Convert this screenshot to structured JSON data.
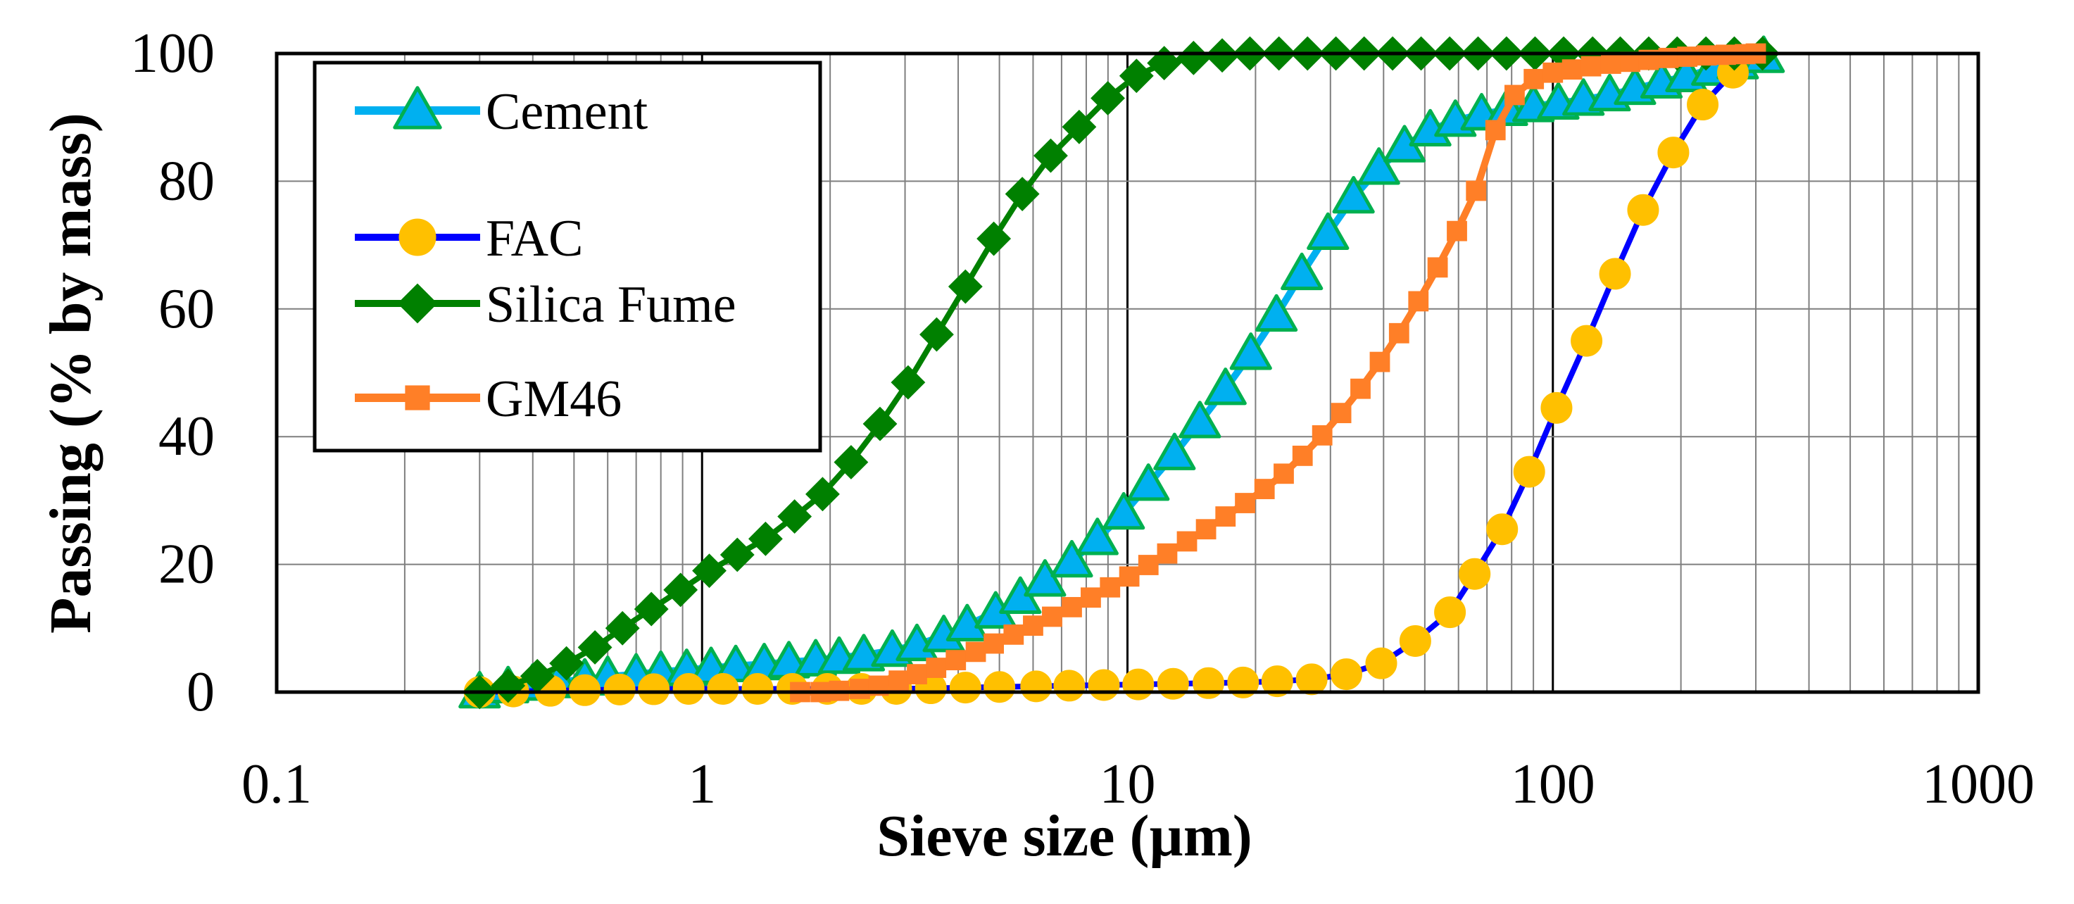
{
  "chart_data": {
    "type": "line",
    "title": "",
    "xlabel": "Sieve size (µm)",
    "ylabel": "Passing (% by mass)",
    "xscale": "log",
    "xlim": [
      0.1,
      1000
    ],
    "ylim": [
      0,
      100
    ],
    "x_ticks": [
      0.1,
      1,
      10,
      100,
      1000
    ],
    "x_tick_labels": [
      "0.1",
      "1",
      "10",
      "100",
      "1000"
    ],
    "y_ticks": [
      0,
      20,
      40,
      60,
      80,
      100
    ],
    "y_tick_labels": [
      "0",
      "20",
      "40",
      "60",
      "80",
      "100"
    ],
    "grid": true,
    "legend_position": "top-left",
    "series": [
      {
        "name": "Cement",
        "marker": "triangle",
        "line_color": "#00B0F0",
        "marker_fill": "#00B0F0",
        "marker_stroke": "#00B050",
        "x": [
          0.3,
          0.35,
          0.4,
          0.46,
          0.53,
          0.6,
          0.7,
          0.8,
          0.92,
          1.05,
          1.2,
          1.4,
          1.6,
          1.85,
          2.1,
          2.4,
          2.8,
          3.2,
          3.7,
          4.2,
          4.9,
          5.6,
          6.4,
          7.4,
          8.5,
          9.8,
          11.2,
          12.9,
          14.8,
          17,
          19.5,
          22.4,
          25.7,
          29.6,
          34,
          39,
          44.8,
          51.5,
          59,
          68,
          78,
          90,
          103,
          118,
          136,
          156,
          180,
          206,
          237,
          272,
          313
        ],
        "y": [
          0,
          0.8,
          1.2,
          1.6,
          2,
          2.4,
          2.8,
          3.2,
          3.5,
          3.8,
          4.1,
          4.4,
          4.7,
          5,
          5.4,
          5.8,
          6.5,
          7.4,
          8.8,
          10.5,
          12.5,
          14.8,
          17.5,
          20.5,
          24,
          28,
          32.5,
          37.3,
          42.3,
          47.5,
          53,
          59,
          65.5,
          71.8,
          77.5,
          82,
          85.5,
          88,
          89.5,
          90.5,
          91.2,
          91.8,
          92.2,
          92.8,
          93.5,
          94.5,
          95.5,
          96.5,
          97.5,
          98.5,
          99.5
        ]
      },
      {
        "name": "FAC",
        "marker": "circle",
        "line_color": "#0000FF",
        "marker_fill": "#FFC000",
        "marker_stroke": "#FFC000",
        "x": [
          0.3,
          0.36,
          0.44,
          0.53,
          0.64,
          0.77,
          0.93,
          1.12,
          1.35,
          1.63,
          1.97,
          2.37,
          2.86,
          3.45,
          4.16,
          5,
          6.1,
          7.3,
          8.8,
          10.6,
          12.8,
          15.5,
          18.7,
          22.5,
          27.1,
          32.7,
          39.5,
          47.5,
          57.3,
          65.5,
          76,
          88,
          102,
          120,
          140,
          163,
          192,
          225,
          265
        ],
        "y": [
          0,
          0.1,
          0.2,
          0.3,
          0.4,
          0.45,
          0.5,
          0.5,
          0.5,
          0.5,
          0.5,
          0.5,
          0.5,
          0.6,
          0.7,
          0.8,
          0.9,
          1,
          1.1,
          1.2,
          1.3,
          1.4,
          1.5,
          1.7,
          2,
          2.8,
          4.5,
          8,
          12.5,
          18.5,
          25.5,
          34.5,
          44.5,
          55,
          65.5,
          75.5,
          84.5,
          92,
          97
        ]
      },
      {
        "name": "Silica Fume",
        "marker": "diamond",
        "line_color": "#008000",
        "marker_fill": "#008000",
        "marker_stroke": "#008000",
        "x": [
          0.3,
          0.35,
          0.41,
          0.48,
          0.56,
          0.65,
          0.76,
          0.89,
          1.04,
          1.21,
          1.41,
          1.65,
          1.92,
          2.24,
          2.62,
          3.05,
          3.56,
          4.16,
          4.85,
          5.66,
          6.6,
          7.7,
          8.99,
          10.5,
          12.2,
          14.3,
          16.7,
          19.4,
          22.7,
          26.5,
          30.9,
          36,
          42,
          49,
          57.2,
          66.7,
          77.8,
          90.8,
          106,
          124,
          144,
          168,
          196,
          229,
          267,
          311
        ],
        "y": [
          0,
          1,
          2.5,
          4.5,
          7,
          10,
          13,
          16,
          19,
          21.5,
          24,
          27.5,
          31,
          36,
          42,
          48.5,
          56,
          63.5,
          71,
          78,
          84,
          88.5,
          93,
          96.5,
          98.5,
          99.3,
          99.7,
          100,
          100,
          100,
          100,
          100,
          100,
          100,
          100,
          100,
          100,
          100,
          100,
          100,
          100,
          100,
          100,
          100,
          100,
          100
        ]
      },
      {
        "name": "GM46",
        "marker": "square",
        "line_color": "#FF7F27",
        "marker_fill": "#FF7F27",
        "marker_stroke": "#FF7F27",
        "x": [
          1.7,
          1.9,
          2.1,
          2.35,
          2.6,
          2.9,
          3.2,
          3.55,
          3.95,
          4.4,
          4.85,
          5.4,
          6,
          6.65,
          7.4,
          8.2,
          9.1,
          10.1,
          11.2,
          12.4,
          13.8,
          15.3,
          17,
          18.9,
          21,
          23.3,
          25.8,
          28.7,
          31.8,
          35.3,
          39.2,
          43.5,
          48.3,
          53.6,
          59.5,
          66,
          73.3,
          81.3,
          90.2,
          100,
          111,
          123,
          137,
          152,
          168,
          187,
          207,
          230,
          255,
          283,
          300
        ],
        "y": [
          0,
          0,
          0.2,
          0.5,
          1,
          1.8,
          2.8,
          3.8,
          5,
          6.3,
          7.6,
          9,
          10.4,
          11.8,
          13.3,
          14.8,
          16.4,
          18.1,
          19.9,
          21.7,
          23.6,
          25.5,
          27.5,
          29.6,
          31.8,
          34.2,
          37,
          40.2,
          43.7,
          47.5,
          51.7,
          56.2,
          61.2,
          66.5,
          72.2,
          78.5,
          88,
          93.5,
          96,
          97,
          97.5,
          98,
          98.4,
          98.7,
          99,
          99.3,
          99.5,
          99.7,
          99.8,
          99.9,
          100
        ]
      }
    ]
  }
}
